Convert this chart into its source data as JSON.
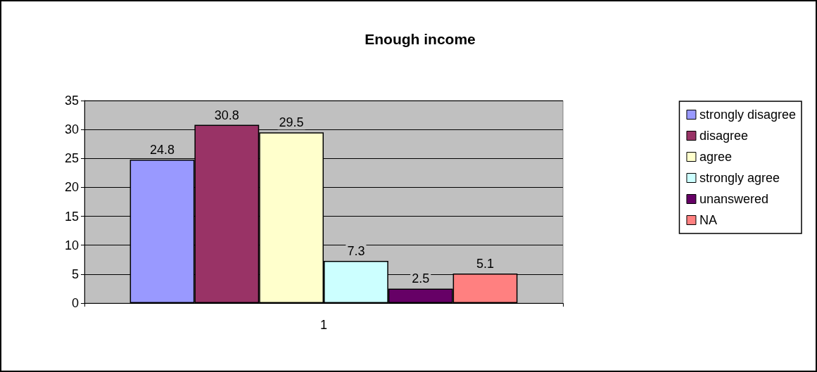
{
  "chart_data": {
    "type": "bar",
    "title": "Enough income",
    "categories": [
      "1"
    ],
    "series": [
      {
        "name": "strongly disagree",
        "color": "#9999ff",
        "values": [
          24.8
        ]
      },
      {
        "name": "disagree",
        "color": "#993366",
        "values": [
          30.8
        ]
      },
      {
        "name": "agree",
        "color": "#ffffcc",
        "values": [
          29.5
        ]
      },
      {
        "name": "strongly agree",
        "color": "#ccffff",
        "values": [
          7.3
        ]
      },
      {
        "name": "unanswered",
        "color": "#660066",
        "values": [
          2.5
        ]
      },
      {
        "name": "NA",
        "color": "#ff8080",
        "values": [
          5.1
        ]
      }
    ],
    "ylim": [
      0,
      35
    ],
    "yticks": [
      0,
      5,
      10,
      15,
      20,
      25,
      30,
      35
    ],
    "grid": "y",
    "legend": "right",
    "data_labels": true
  }
}
